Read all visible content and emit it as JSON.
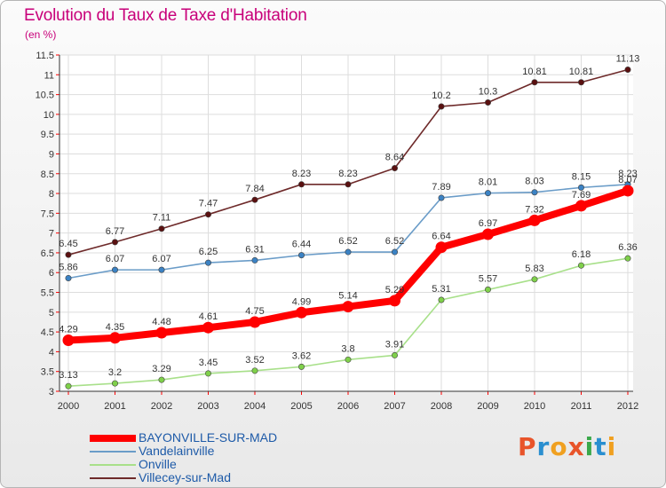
{
  "title": "Evolution du Taux de Taxe d'Habitation",
  "subtitle": "(en %)",
  "logo": {
    "text": "Proxiti",
    "colors": [
      "#e8542a",
      "#2a8fd0",
      "#f0a020",
      "#e8542a",
      "#3aa84a",
      "#2a8fd0",
      "#f0a020"
    ]
  },
  "chart_data": {
    "type": "line",
    "title": "Evolution du Taux de Taxe d'Habitation",
    "ylabel": "(en %)",
    "xlabel": "",
    "x": [
      "2000",
      "2001",
      "2002",
      "2003",
      "2004",
      "2005",
      "2006",
      "2007",
      "2008",
      "2009",
      "2010",
      "2011",
      "2012"
    ],
    "ylim": [
      3,
      11.5
    ],
    "yticks": [
      "3",
      "3.5",
      "4",
      "4.5",
      "5",
      "5.5",
      "6",
      "6.5",
      "7",
      "7.5",
      "8",
      "8.5",
      "9",
      "9.5",
      "10",
      "10.5",
      "11",
      "11.5"
    ],
    "grid": true,
    "legend_position": "bottom-left",
    "series": [
      {
        "name": "BAYONVILLE-SUR-MAD",
        "color": "#ff0000",
        "point_color": "#ff0000",
        "values": [
          4.29,
          4.35,
          4.48,
          4.61,
          4.75,
          4.99,
          5.14,
          5.29,
          6.64,
          6.97,
          7.32,
          7.69,
          8.07
        ],
        "labels": [
          "4.29",
          "4.35",
          "4.48",
          "4.61",
          "4.75",
          "4.99",
          "5.14",
          "5.29",
          "6.64",
          "6.97",
          "7.32",
          "7.69",
          "8.07"
        ]
      },
      {
        "name": "Vandelainville",
        "color": "#6a9cc8",
        "point_color": "#3b82c4",
        "values": [
          5.86,
          6.07,
          6.07,
          6.25,
          6.31,
          6.44,
          6.52,
          6.52,
          7.89,
          8.01,
          8.03,
          8.15,
          8.23
        ],
        "labels": [
          "5.86",
          "6.07",
          "6.07",
          "6.25",
          "6.31",
          "6.44",
          "6.52",
          "6.52",
          "7.89",
          "8.01",
          "8.03",
          "8.15",
          "8.23"
        ]
      },
      {
        "name": "Onville",
        "color": "#a8e08a",
        "point_color": "#7fd04a",
        "values": [
          3.13,
          3.2,
          3.29,
          3.45,
          3.52,
          3.62,
          3.8,
          3.91,
          5.31,
          5.57,
          5.83,
          6.18,
          6.36
        ],
        "labels": [
          "3.13",
          "3.2",
          "3.29",
          "3.45",
          "3.52",
          "3.62",
          "3.8",
          "3.91",
          "5.31",
          "5.57",
          "5.83",
          "6.18",
          "6.36"
        ]
      },
      {
        "name": "Villecey-sur-Mad",
        "color": "#6e2a2a",
        "point_color": "#5a1010",
        "values": [
          6.45,
          6.77,
          7.11,
          7.47,
          7.84,
          8.23,
          8.23,
          8.64,
          10.2,
          10.3,
          10.81,
          10.81,
          11.13
        ],
        "labels": [
          "6.45",
          "6.77",
          "7.11",
          "7.47",
          "7.84",
          "8.23",
          "8.23",
          "8.64",
          "10.2",
          "10.3",
          "10.81",
          "10.81",
          "11.13"
        ]
      }
    ]
  }
}
